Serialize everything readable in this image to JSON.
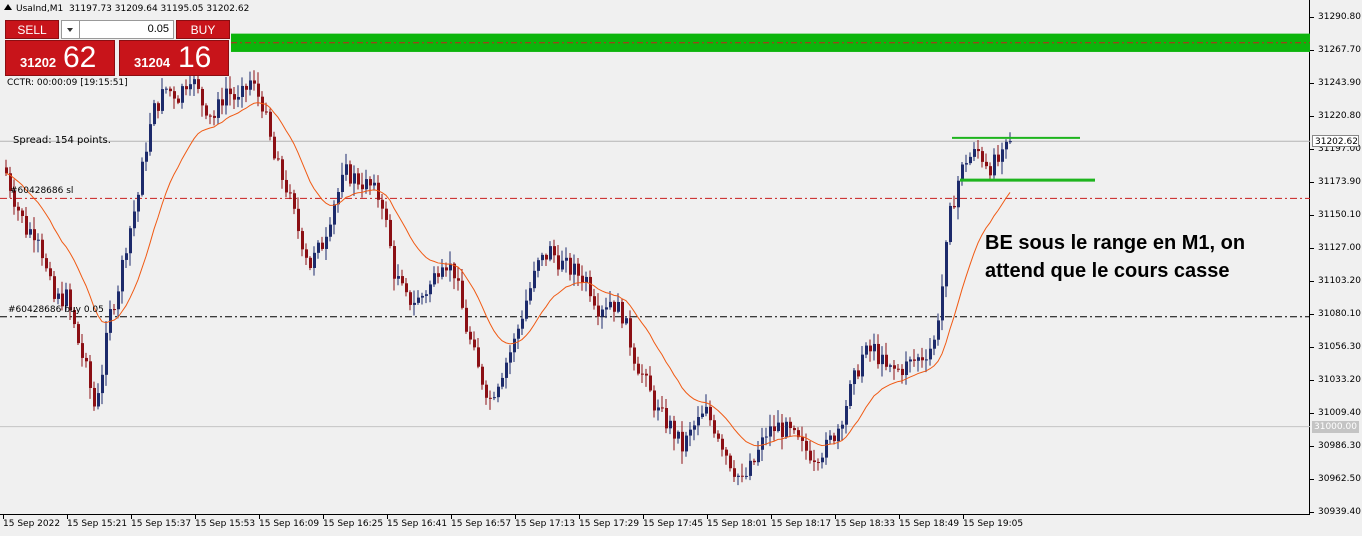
{
  "symbol": {
    "name": "UsaInd,M1",
    "ohlc": "31197.73 31209.64 31195.05 31202.62"
  },
  "trade_panel": {
    "sell_label": "SELL",
    "buy_label": "BUY",
    "lot_value": "0.05",
    "bid_small": "31202",
    "bid_big": "62",
    "ask_small": "31204",
    "ask_big": "16"
  },
  "cctr": "CCTR: 00:00:09 [19:15:51]",
  "spread": "Spread: 154 points.",
  "orders": {
    "sl_label": "#60428686 sl",
    "buy_label": "#60428686 buy 0.05"
  },
  "annotation": {
    "line1": "BE sous le range en M1, on",
    "line2": "attend que le cours casse"
  },
  "price_axis": {
    "labels": [
      "31290.80",
      "31267.70",
      "31243.90",
      "31220.80",
      "31197.00",
      "31173.90",
      "31150.10",
      "31127.00",
      "31103.20",
      "31080.10",
      "31056.30",
      "31033.20",
      "31009.40",
      "30986.30",
      "30962.50",
      "30939.40"
    ],
    "current_price": "31202.62",
    "level_1000": "31000.00"
  },
  "time_axis": {
    "labels": [
      "15 Sep 2022",
      "15 Sep 15:21",
      "15 Sep 15:37",
      "15 Sep 15:53",
      "15 Sep 16:09",
      "15 Sep 16:25",
      "15 Sep 16:41",
      "15 Sep 16:57",
      "15 Sep 17:13",
      "15 Sep 17:29",
      "15 Sep 17:45",
      "15 Sep 18:01",
      "15 Sep 18:17",
      "15 Sep 18:33",
      "15 Sep 18:49",
      "15 Sep 19:05"
    ]
  },
  "colors": {
    "bull": "#1c2a6b",
    "bear": "#8b0f14",
    "ma": "#f05a14",
    "zone": "#0cb40c",
    "sl_line": "#c81e1e",
    "buy_line": "#000000",
    "range_line": "#1eb41e"
  },
  "chart_data": {
    "type": "candlestick",
    "price_range": [
      30939.4,
      31290.8
    ],
    "zone": [
      31266,
      31279
    ],
    "current_price": 31202.62,
    "sl_price": 31162,
    "buy_price": 31078,
    "range_top": 31205,
    "range_bottom": 31175,
    "anchor_closes": [
      [
        0,
        31180
      ],
      [
        2,
        31162
      ],
      [
        5,
        31140
      ],
      [
        8,
        31138
      ],
      [
        10,
        31110
      ],
      [
        12,
        31090
      ],
      [
        15,
        31092
      ],
      [
        18,
        31060
      ],
      [
        20,
        31040
      ],
      [
        22,
        31015
      ],
      [
        24,
        31040
      ],
      [
        26,
        31080
      ],
      [
        28,
        31100
      ],
      [
        30,
        31130
      ],
      [
        33,
        31165
      ],
      [
        35,
        31200
      ],
      [
        37,
        31225
      ],
      [
        40,
        31240
      ],
      [
        43,
        31235
      ],
      [
        46,
        31250
      ],
      [
        49,
        31230
      ],
      [
        52,
        31220
      ],
      [
        55,
        31240
      ],
      [
        58,
        31230
      ],
      [
        61,
        31245
      ],
      [
        64,
        31230
      ],
      [
        67,
        31190
      ],
      [
        70,
        31170
      ],
      [
        73,
        31140
      ],
      [
        76,
        31115
      ],
      [
        79,
        31130
      ],
      [
        82,
        31160
      ],
      [
        85,
        31180
      ],
      [
        88,
        31175
      ],
      [
        91,
        31170
      ],
      [
        94,
        31160
      ],
      [
        97,
        31110
      ],
      [
        100,
        31090
      ],
      [
        103,
        31090
      ],
      [
        106,
        31100
      ],
      [
        109,
        31120
      ],
      [
        112,
        31110
      ],
      [
        115,
        31070
      ],
      [
        118,
        31040
      ],
      [
        121,
        31020
      ],
      [
        124,
        31040
      ],
      [
        127,
        31060
      ],
      [
        130,
        31090
      ],
      [
        133,
        31115
      ],
      [
        136,
        31125
      ],
      [
        139,
        31115
      ],
      [
        142,
        31110
      ],
      [
        145,
        31105
      ],
      [
        148,
        31085
      ],
      [
        151,
        31090
      ],
      [
        154,
        31080
      ],
      [
        157,
        31050
      ],
      [
        160,
        31030
      ],
      [
        163,
        31010
      ],
      [
        166,
        31000
      ],
      [
        169,
        30985
      ],
      [
        172,
        31000
      ],
      [
        175,
        31010
      ],
      [
        178,
        30995
      ],
      [
        181,
        30975
      ],
      [
        184,
        30960
      ],
      [
        187,
        30975
      ],
      [
        190,
        30995
      ],
      [
        193,
        31000
      ],
      [
        196,
        30995
      ],
      [
        199,
        30985
      ],
      [
        202,
        30980
      ],
      [
        205,
        30985
      ],
      [
        208,
        31000
      ],
      [
        211,
        31025
      ],
      [
        214,
        31050
      ],
      [
        217,
        31055
      ],
      [
        220,
        31040
      ],
      [
        223,
        31040
      ],
      [
        226,
        31045
      ],
      [
        229,
        31050
      ],
      [
        232,
        31060
      ],
      [
        234,
        31100
      ],
      [
        236,
        31150
      ],
      [
        238,
        31175
      ],
      [
        240,
        31190
      ],
      [
        243,
        31195
      ],
      [
        246,
        31185
      ],
      [
        249,
        31190
      ],
      [
        251,
        31202.62
      ]
    ]
  }
}
